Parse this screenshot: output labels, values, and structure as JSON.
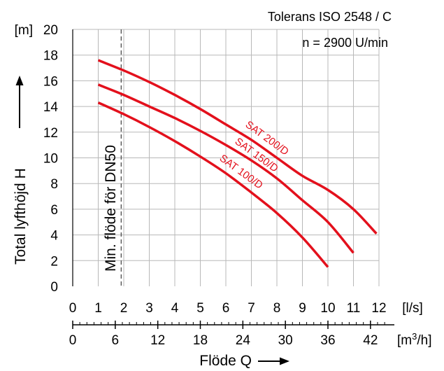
{
  "chart_data": {
    "type": "line",
    "tolerance": "Tolerans ISO 2548 / C",
    "speed": "n = 2900 U/min",
    "ylabel": "Total lyfthöjd  H",
    "xlabel": "Flöde  Q",
    "y_unit": "[m]",
    "x_unit": "[l/s]",
    "x2_unit_base": "[m",
    "x2_unit_sup": "3",
    "x2_unit_tail": "/h]",
    "ylim": [
      0,
      20
    ],
    "xlim": [
      0,
      12
    ],
    "y_ticks": [
      "0",
      "2",
      "4",
      "6",
      "8",
      "10",
      "12",
      "14",
      "16",
      "18"
    ],
    "x_ticks": [
      "0",
      "1",
      "2",
      "3",
      "4",
      "5",
      "6",
      "7",
      "8",
      "9",
      "10",
      "11",
      "12"
    ],
    "x2_ticks": [
      {
        "label": "0",
        "value": 0
      },
      {
        "label": "6",
        "value": 1.6667
      },
      {
        "label": "12",
        "value": 3.3333
      },
      {
        "label": "18",
        "value": 5
      },
      {
        "label": "24",
        "value": 6.6667
      },
      {
        "label": "30",
        "value": 8.3333
      },
      {
        "label": "36",
        "value": 10
      },
      {
        "label": "42",
        "value": 11.6667
      }
    ],
    "grid": true,
    "vline": {
      "x": 1.9,
      "label": "Min. flöde för DN50"
    },
    "curve_color": "#e3101c",
    "series": [
      {
        "name": "SAT 200/D",
        "points": [
          [
            1,
            17.6
          ],
          [
            2,
            16.8
          ],
          [
            3,
            15.9
          ],
          [
            4,
            14.9
          ],
          [
            5,
            13.8
          ],
          [
            6,
            12.6
          ],
          [
            7,
            11.4
          ],
          [
            8,
            10.0
          ],
          [
            9,
            8.6
          ],
          [
            10,
            7.5
          ],
          [
            11,
            6.0
          ],
          [
            11.9,
            4.1
          ]
        ]
      },
      {
        "name": "SAT 150/D",
        "points": [
          [
            1,
            15.7
          ],
          [
            2,
            14.9
          ],
          [
            3,
            14.0
          ],
          [
            4,
            13.1
          ],
          [
            5,
            12.1
          ],
          [
            6,
            11.0
          ],
          [
            7,
            9.8
          ],
          [
            8,
            8.4
          ],
          [
            9,
            6.7
          ],
          [
            10,
            5.0
          ],
          [
            11,
            2.6
          ]
        ]
      },
      {
        "name": "SAT 100/D",
        "points": [
          [
            1,
            14.3
          ],
          [
            2,
            13.4
          ],
          [
            3,
            12.4
          ],
          [
            4,
            11.3
          ],
          [
            5,
            10.1
          ],
          [
            6,
            8.8
          ],
          [
            7,
            7.3
          ],
          [
            8,
            5.7
          ],
          [
            9,
            3.8
          ],
          [
            10,
            1.5
          ]
        ]
      }
    ]
  }
}
